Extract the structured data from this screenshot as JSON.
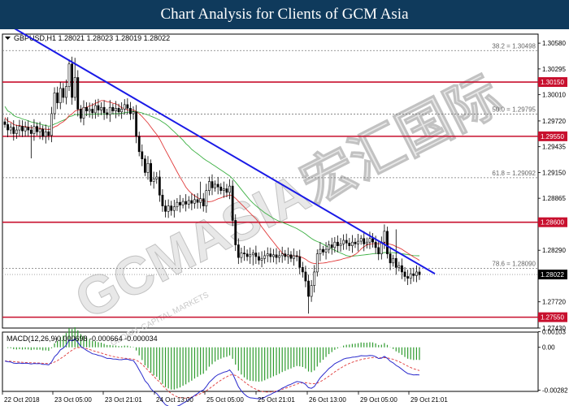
{
  "header": {
    "title": "Chart Analysis for Clients of GCM Asia"
  },
  "symbol_info": "GBPUSD,H1  1.28021 1.28023 1.28019 1.28022",
  "watermark": "GCMASIA宏汇国际",
  "watermark_sub": "GLOBAL CAPITAL MARKETS",
  "colors": {
    "resistance_line": "#c8102e",
    "trendline": "#1a1ae6",
    "ma_fast": "#e03a3a",
    "ma_slow": "#3cb043",
    "candle": "#000000",
    "macd_hist": "#2e9b2e",
    "macd_signal": "#e03a3a",
    "macd_line": "#2a2acc"
  },
  "chart_data": [
    {
      "type": "candlestick",
      "title": "GBPUSD,H1",
      "ylim": [
        1.2743,
        1.3068
      ],
      "y_ticks": [
        1.3058,
        1.30295,
        1.3001,
        1.2972,
        1.29435,
        1.2915,
        1.28865,
        1.2829,
        1.2772,
        1.2743
      ],
      "x_ticks": [
        "22 Oct 2018",
        "23 Oct 05:00",
        "23 Oct 21:01",
        "24 Oct 13:00",
        "25 Oct 05:00",
        "25 Oct 21:01",
        "26 Oct 13:00",
        "29 Oct 05:00",
        "29 Oct 21:01"
      ],
      "horizontal_levels": [
        {
          "label": "1.30150",
          "value": 1.3015
        },
        {
          "label": "1.29550",
          "value": 1.2955
        },
        {
          "label": "1.28600",
          "value": 1.286
        },
        {
          "label": "1.27550",
          "value": 1.2755
        }
      ],
      "fibonacci_levels": [
        {
          "label": "38.2 = 1.30498",
          "value": 1.30498
        },
        {
          "label": "50.0 = 1.29795",
          "value": 1.29795
        },
        {
          "label": "61.8 = 1.29092",
          "value": 1.29092
        },
        {
          "label": "78.6 = 1.28090",
          "value": 1.2809
        }
      ],
      "current_price": {
        "label": "1.28022",
        "value": 1.28022
      },
      "trendline": {
        "start_value": 1.3082,
        "end_value": 1.2803
      },
      "close": [
        1.2968,
        1.2962,
        1.2965,
        1.2958,
        1.2962,
        1.2966,
        1.2961,
        1.2965,
        1.2962,
        1.2958,
        1.2966,
        1.296,
        1.2963,
        1.2955,
        1.296,
        1.2956,
        1.298,
        1.3003,
        1.2992,
        1.3008,
        1.2998,
        1.301,
        1.3035,
        1.2998,
        1.302,
        1.2985,
        1.2975,
        1.2987,
        1.2983,
        1.2985,
        1.2981,
        1.2989,
        1.2984,
        1.2987,
        1.2981,
        1.2979,
        1.2987,
        1.2983,
        1.2986,
        1.2982,
        1.2985,
        1.299,
        1.2986,
        1.298,
        1.2982,
        1.2955,
        1.2938,
        1.293,
        1.2915,
        1.2925,
        1.2905,
        1.2908,
        1.291,
        1.289,
        1.2878,
        1.2872,
        1.2878,
        1.2873,
        1.2877,
        1.2882,
        1.2879,
        1.2883,
        1.288,
        1.2884,
        1.2881,
        1.2885,
        1.2882,
        1.2886,
        1.2878,
        1.2895,
        1.2905,
        1.2898,
        1.2902,
        1.2899,
        1.2895,
        1.2897,
        1.2893,
        1.29,
        1.2862,
        1.2835,
        1.2821,
        1.2826,
        1.2825,
        1.2822,
        1.2824,
        1.2826,
        1.2822,
        1.2818,
        1.282,
        1.2823,
        1.2825,
        1.2822,
        1.2824,
        1.2821,
        1.2823,
        1.2825,
        1.2822,
        1.2824,
        1.282,
        1.2823,
        1.2822,
        1.281,
        1.2805,
        1.2795,
        1.2778,
        1.279,
        1.2805,
        1.2825,
        1.283,
        1.2827,
        1.283,
        1.2835,
        1.2832,
        1.2838,
        1.2834,
        1.2836,
        1.284,
        1.2837,
        1.2834,
        1.2838,
        1.2836,
        1.2839,
        1.2842,
        1.2836,
        1.2838,
        1.2842,
        1.2838,
        1.2832,
        1.2825,
        1.2838,
        1.285,
        1.2825,
        1.2815,
        1.282,
        1.281,
        1.2812,
        1.2805,
        1.28,
        1.2798,
        1.2803,
        1.2801,
        1.2805,
        1.2802
      ]
    },
    {
      "type": "macd",
      "title": "MACD(12,26,9)",
      "values_label": "-0.000698 -0.000664 -0.000034",
      "ylim": [
        -0.0029,
        0.001
      ],
      "y_ticks": [
        0.00103,
        0.0,
        -0.00282
      ],
      "macd": -0.000698,
      "signal": -0.000664,
      "histogram": -3.4e-05
    }
  ]
}
